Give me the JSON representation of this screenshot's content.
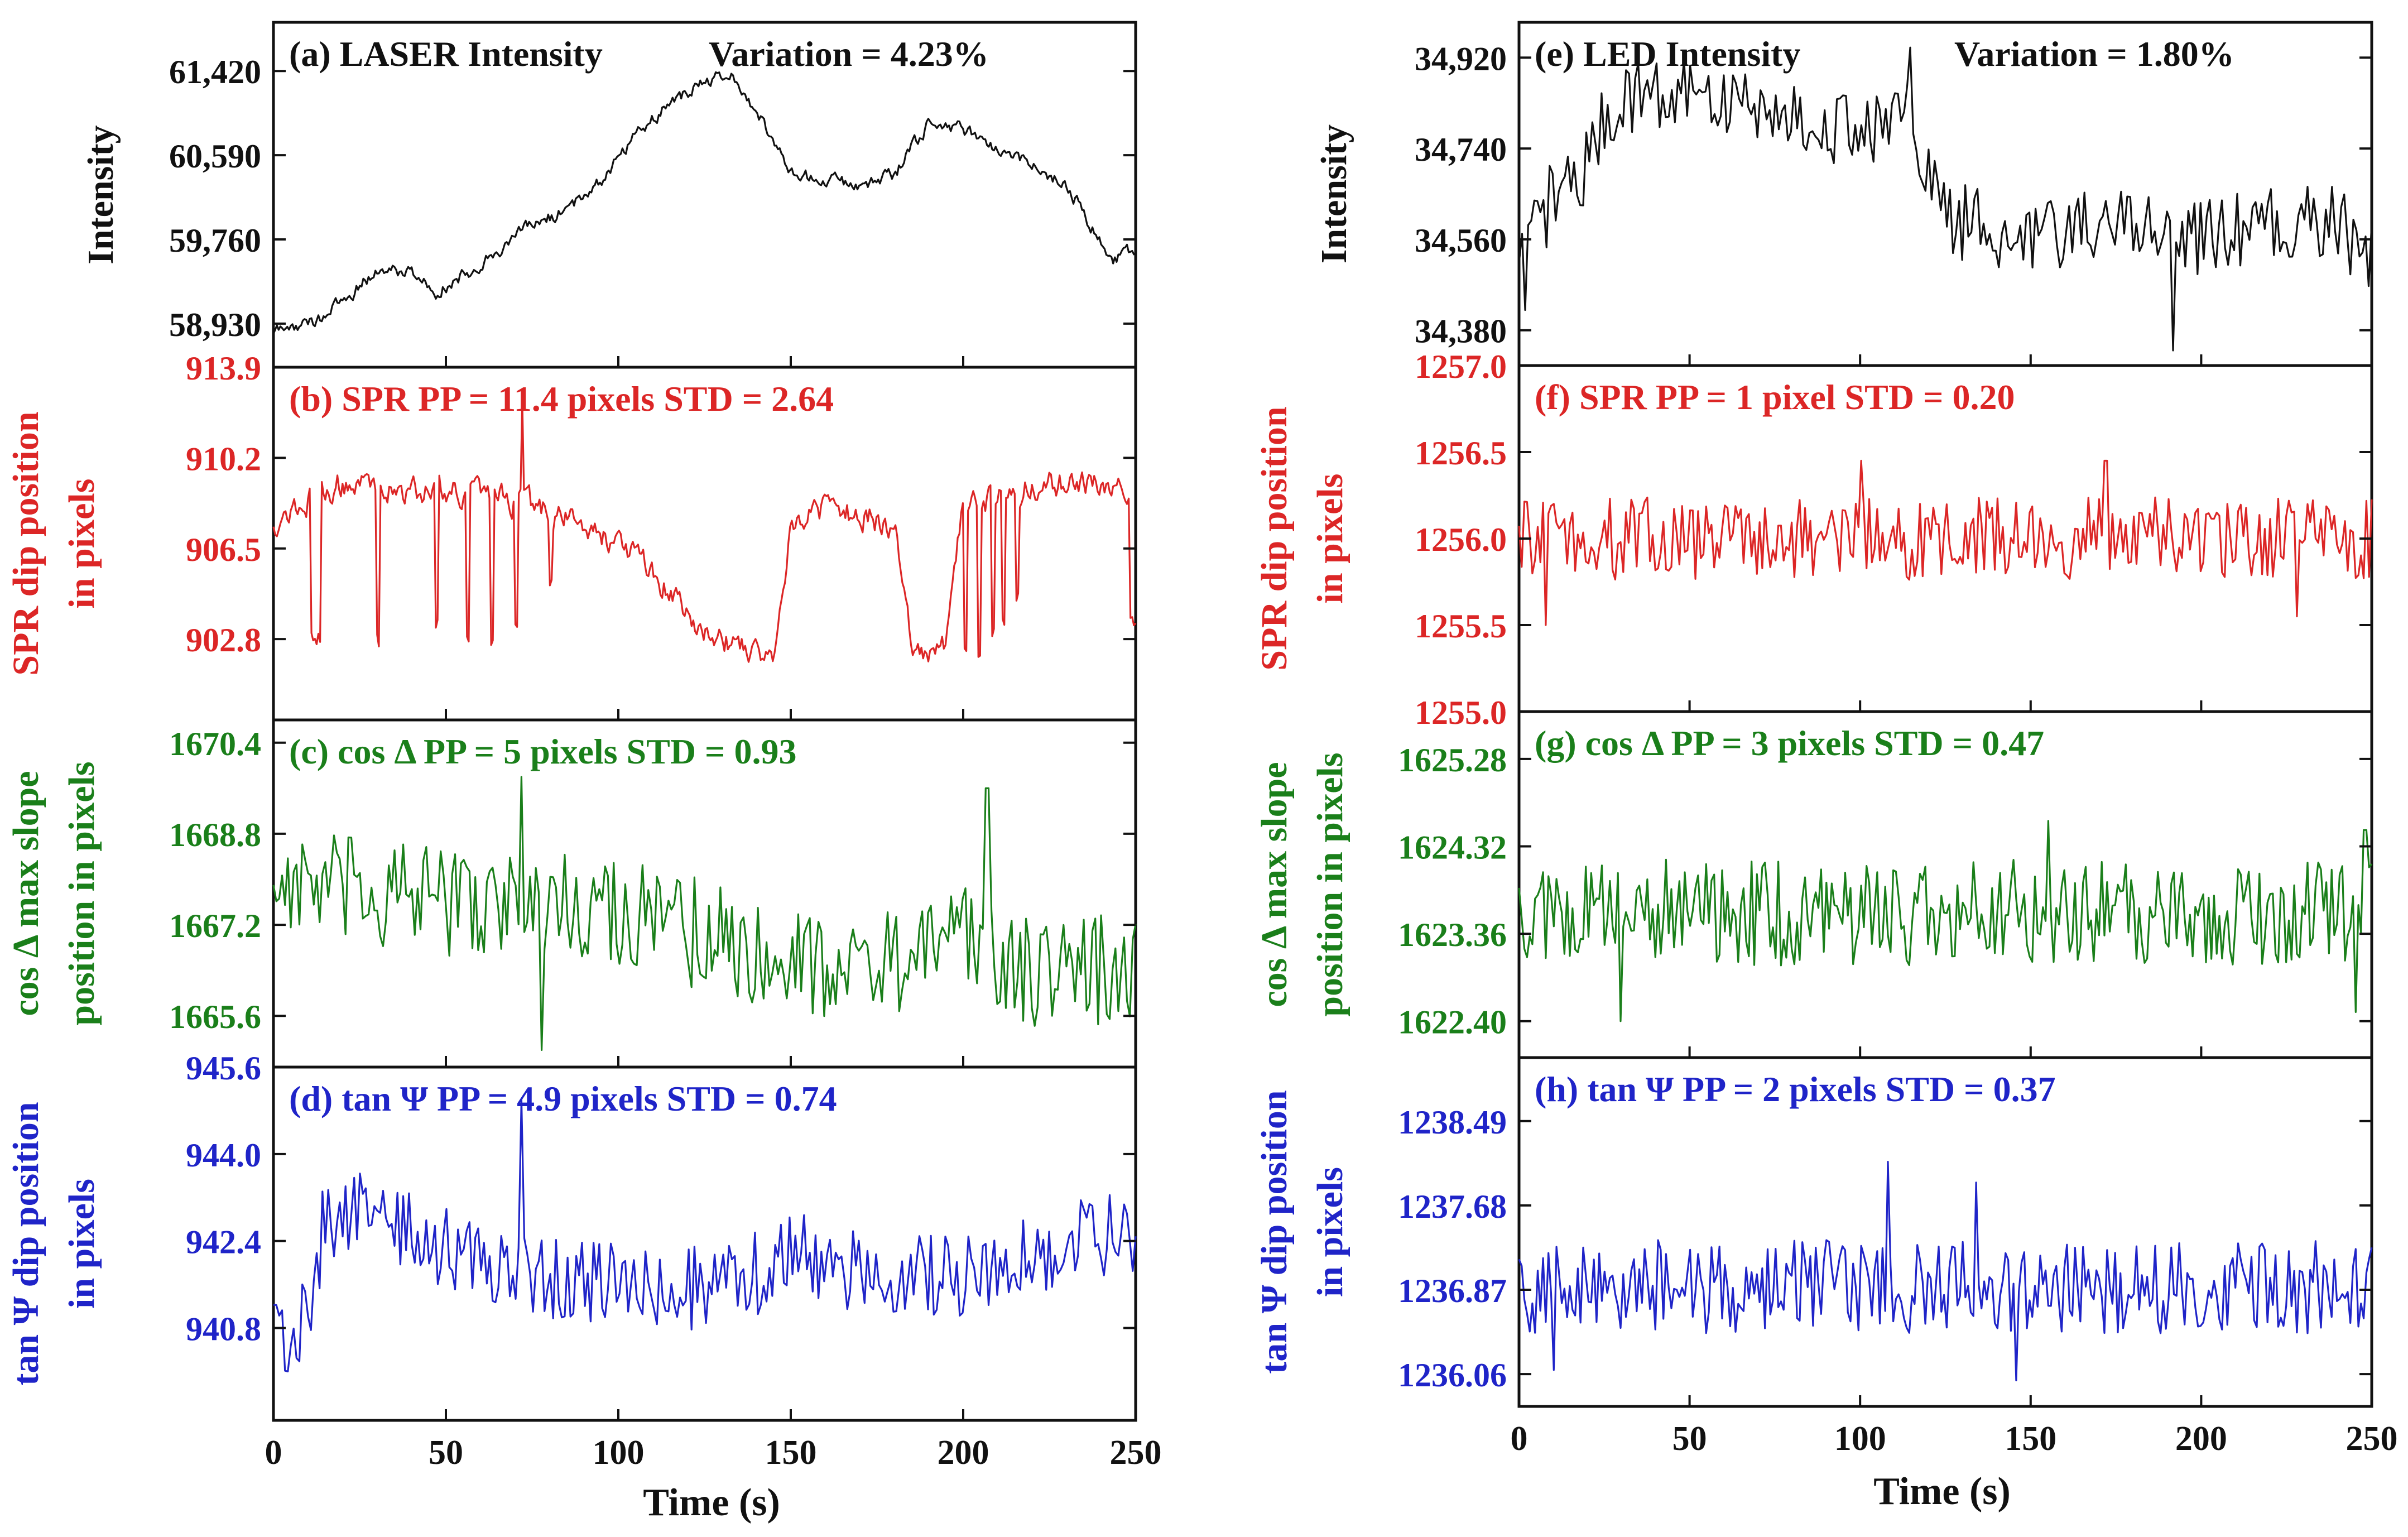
{
  "figure": {
    "left_xlabel": "Time (s)",
    "right_xlabel": "Time (s)"
  },
  "colors": {
    "black": "#111111",
    "red": "#dc2626",
    "green": "#1a7f1a",
    "blue": "#1f24c8"
  },
  "chart_data": [
    {
      "id": "a",
      "type": "line",
      "color": "black",
      "title": "(a) LASER Intensity",
      "annotation": "Variation = 4.23%",
      "ylabel": [
        "Intensity"
      ],
      "yticks": [
        58930,
        59760,
        60590,
        61420
      ],
      "ytick_labels": [
        "58,930",
        "59,760",
        "60,590",
        "61,420"
      ],
      "ylim": [
        58500,
        61900
      ],
      "xlim": [
        0,
        250
      ],
      "x_range": [
        0,
        250
      ],
      "n_points": 500,
      "shape": "laser",
      "anchors": [
        [
          0,
          58850
        ],
        [
          12,
          58950
        ],
        [
          20,
          59150
        ],
        [
          30,
          59450
        ],
        [
          40,
          59450
        ],
        [
          47,
          59250
        ],
        [
          55,
          59400
        ],
        [
          65,
          59650
        ],
        [
          75,
          59900
        ],
        [
          85,
          60050
        ],
        [
          95,
          60350
        ],
        [
          105,
          60800
        ],
        [
          115,
          61100
        ],
        [
          125,
          61300
        ],
        [
          132,
          61400
        ],
        [
          140,
          61050
        ],
        [
          150,
          60400
        ],
        [
          160,
          60350
        ],
        [
          170,
          60300
        ],
        [
          180,
          60400
        ],
        [
          190,
          60900
        ],
        [
          200,
          60850
        ],
        [
          210,
          60650
        ],
        [
          220,
          60500
        ],
        [
          230,
          60300
        ],
        [
          237,
          59900
        ],
        [
          243,
          59550
        ],
        [
          250,
          59650
        ]
      ],
      "noise": 55,
      "spikes": []
    },
    {
      "id": "b",
      "type": "line",
      "color": "red",
      "title": "(b) SPR   PP = 11.4 pixels   STD = 2.64",
      "ylabel": [
        "SPR dip position",
        "in pixels"
      ],
      "yticks": [
        902.8,
        906.5,
        910.2,
        913.9
      ],
      "ytick_labels": [
        "902.8",
        "906.5",
        "910.2",
        "913.9"
      ],
      "ylim": [
        899.5,
        913.9
      ],
      "xlim": [
        0,
        250
      ],
      "x_range": [
        0,
        250
      ],
      "n_points": 500,
      "shape": "spr_laser",
      "anchors": [
        [
          0,
          907.5
        ],
        [
          10,
          908.5
        ],
        [
          20,
          909.2
        ],
        [
          30,
          909.0
        ],
        [
          40,
          908.8
        ],
        [
          50,
          909.0
        ],
        [
          60,
          908.6
        ],
        [
          70,
          908.4
        ],
        [
          80,
          908.0
        ],
        [
          90,
          907.5
        ],
        [
          100,
          906.8
        ],
        [
          110,
          905.5
        ],
        [
          120,
          903.8
        ],
        [
          130,
          902.8
        ],
        [
          140,
          902.4
        ],
        [
          145,
          902.0
        ],
        [
          150,
          907.6
        ],
        [
          160,
          908.2
        ],
        [
          170,
          907.8
        ],
        [
          180,
          907.5
        ],
        [
          185,
          902.5
        ],
        [
          190,
          902.2
        ],
        [
          195,
          902.4
        ],
        [
          200,
          908.4
        ],
        [
          210,
          908.6
        ],
        [
          220,
          909.0
        ],
        [
          230,
          909.2
        ],
        [
          240,
          909.0
        ],
        [
          250,
          908.9
        ]
      ],
      "noise": 0.45,
      "dips": [
        [
          11,
          14,
          902.8
        ],
        [
          30,
          31,
          902.8
        ],
        [
          47,
          48,
          903.5
        ],
        [
          56,
          57,
          902.8
        ],
        [
          63,
          64,
          902.8
        ],
        [
          70,
          71,
          903.5
        ],
        [
          80,
          81,
          905.0
        ],
        [
          200,
          201,
          902.6
        ],
        [
          204,
          205,
          902.2
        ],
        [
          208,
          209,
          903.0
        ],
        [
          211,
          212,
          903.5
        ],
        [
          215,
          216,
          904.5
        ],
        [
          248,
          250,
          903.5
        ]
      ],
      "spikes": [
        [
          72,
          912.5
        ]
      ]
    },
    {
      "id": "c",
      "type": "line",
      "color": "green",
      "title": "(c) cos Δ   PP = 5 pixels   STD = 0.93",
      "ylabel": [
        "cos Δ max slope",
        "position in pixels"
      ],
      "yticks": [
        1665.6,
        1667.2,
        1668.8,
        1670.4
      ],
      "ytick_labels": [
        "1665.6",
        "1667.2",
        "1668.8",
        "1670.4"
      ],
      "ylim": [
        1664.7,
        1670.8
      ],
      "xlim": [
        0,
        250
      ],
      "x_range": [
        0,
        250
      ],
      "n_points": 300,
      "shape": "noise",
      "anchors": [
        [
          0,
          1668.0
        ],
        [
          30,
          1667.7
        ],
        [
          60,
          1667.6
        ],
        [
          90,
          1667.6
        ],
        [
          120,
          1667.1
        ],
        [
          150,
          1666.6
        ],
        [
          180,
          1666.5
        ],
        [
          200,
          1667.0
        ],
        [
          220,
          1666.4
        ],
        [
          250,
          1666.4
        ]
      ],
      "noise": 0.7,
      "spikes": [
        [
          72,
          1669.8
        ],
        [
          78,
          1665.0
        ],
        [
          207,
          1669.6
        ]
      ]
    },
    {
      "id": "d",
      "type": "line",
      "color": "blue",
      "title": "(d) tan Ψ   PP = 4.9 pixels   STD = 0.74",
      "ylabel": [
        "tan Ψ dip position",
        "in pixels"
      ],
      "yticks": [
        940.8,
        942.4,
        944.0,
        945.6
      ],
      "ytick_labels": [
        "940.8",
        "942.4",
        "944.0",
        "945.6"
      ],
      "ylim": [
        939.1,
        945.6
      ],
      "xlim": [
        0,
        250
      ],
      "x_range": [
        0,
        250
      ],
      "n_points": 300,
      "shape": "noise",
      "anchors": [
        [
          0,
          941.2
        ],
        [
          5,
          940.5
        ],
        [
          10,
          941.2
        ],
        [
          15,
          942.8
        ],
        [
          25,
          943.0
        ],
        [
          40,
          942.5
        ],
        [
          60,
          942.0
        ],
        [
          80,
          941.7
        ],
        [
          100,
          941.6
        ],
        [
          120,
          941.5
        ],
        [
          140,
          941.8
        ],
        [
          150,
          942.2
        ],
        [
          170,
          941.8
        ],
        [
          200,
          941.7
        ],
        [
          220,
          942.2
        ],
        [
          250,
          942.6
        ]
      ],
      "noise": 0.55,
      "spikes": [
        [
          72,
          945.0
        ],
        [
          4,
          940.0
        ]
      ]
    },
    {
      "id": "e",
      "type": "line",
      "color": "black",
      "title": "(e) LED Intensity",
      "annotation": "Variation = 1.80%",
      "ylabel": [
        "Intensity"
      ],
      "yticks": [
        34380,
        34560,
        34740,
        34920
      ],
      "ytick_labels": [
        "34,380",
        "34,560",
        "34,740",
        "34,920"
      ],
      "ylim": [
        34310,
        34990
      ],
      "xlim": [
        0,
        250
      ],
      "x_range": [
        0,
        250
      ],
      "n_points": 280,
      "shape": "noise",
      "anchors": [
        [
          0,
          34500
        ],
        [
          10,
          34650
        ],
        [
          20,
          34700
        ],
        [
          25,
          34800
        ],
        [
          35,
          34860
        ],
        [
          50,
          34840
        ],
        [
          70,
          34830
        ],
        [
          90,
          34780
        ],
        [
          110,
          34780
        ],
        [
          115,
          34800
        ],
        [
          118,
          34720
        ],
        [
          125,
          34600
        ],
        [
          150,
          34560
        ],
        [
          170,
          34600
        ],
        [
          180,
          34590
        ],
        [
          200,
          34560
        ],
        [
          220,
          34590
        ],
        [
          240,
          34590
        ],
        [
          250,
          34520
        ]
      ],
      "noise": 55,
      "spikes": [
        [
          2,
          34420
        ],
        [
          192,
          34340
        ],
        [
          115,
          34940
        ]
      ]
    },
    {
      "id": "f",
      "type": "line",
      "color": "red",
      "title": "(f) SPR   PP = 1 pixel   STD = 0.20",
      "ylabel": [
        "SPR dip position",
        "in pixels"
      ],
      "yticks": [
        1255.0,
        1255.5,
        1256.0,
        1256.5,
        1257.0
      ],
      "ytick_labels": [
        "1255.0",
        "1255.5",
        "1256.0",
        "1256.5",
        "1257.0"
      ],
      "ylim": [
        1255.0,
        1257.0
      ],
      "xlim": [
        0,
        250
      ],
      "x_range": [
        0,
        250
      ],
      "n_points": 320,
      "shape": "noise",
      "anchors": [
        [
          0,
          1256.0
        ],
        [
          250,
          1256.0
        ]
      ],
      "noise": 0.17,
      "spikes": [
        [
          8,
          1255.5
        ],
        [
          100,
          1256.45
        ],
        [
          172,
          1256.45
        ],
        [
          228,
          1255.55
        ]
      ]
    },
    {
      "id": "g",
      "type": "line",
      "color": "green",
      "title": "(g) cos Δ   PP = 3 pixels   STD = 0.47",
      "ylabel": [
        "cos Δ max slope",
        "position in pixels"
      ],
      "yticks": [
        1622.4,
        1623.36,
        1624.32,
        1625.28
      ],
      "ytick_labels": [
        "1622.40",
        "1623.36",
        "1624.32",
        "1625.28"
      ],
      "ylim": [
        1622.0,
        1625.8
      ],
      "xlim": [
        0,
        250
      ],
      "x_range": [
        0,
        250
      ],
      "n_points": 320,
      "shape": "noise",
      "anchors": [
        [
          0,
          1623.6
        ],
        [
          250,
          1623.6
        ]
      ],
      "noise": 0.42,
      "spikes": [
        [
          155,
          1624.6
        ],
        [
          245,
          1622.5
        ],
        [
          30,
          1622.4
        ],
        [
          248,
          1624.5
        ]
      ]
    },
    {
      "id": "h",
      "type": "line",
      "color": "blue",
      "title": "(h) tan Ψ   PP =  2 pixels   STD = 0.37",
      "ylabel": [
        "tan Ψ dip position",
        "in pixels"
      ],
      "yticks": [
        1236.06,
        1236.87,
        1237.68,
        1238.49
      ],
      "ytick_labels": [
        "1236.06",
        "1236.87",
        "1237.68",
        "1238.49"
      ],
      "ylim": [
        1235.75,
        1239.1
      ],
      "xlim": [
        0,
        250
      ],
      "x_range": [
        0,
        250
      ],
      "n_points": 320,
      "shape": "noise",
      "anchors": [
        [
          0,
          1236.9
        ],
        [
          250,
          1236.9
        ]
      ],
      "noise": 0.32,
      "spikes": [
        [
          108,
          1238.1
        ],
        [
          134,
          1237.9
        ],
        [
          146,
          1236.0
        ],
        [
          10,
          1236.1
        ]
      ]
    }
  ],
  "xaxis": {
    "ticks": [
      0,
      50,
      100,
      150,
      200,
      250
    ],
    "tick_labels": [
      "0",
      "50",
      "100",
      "150",
      "200",
      "250"
    ]
  }
}
